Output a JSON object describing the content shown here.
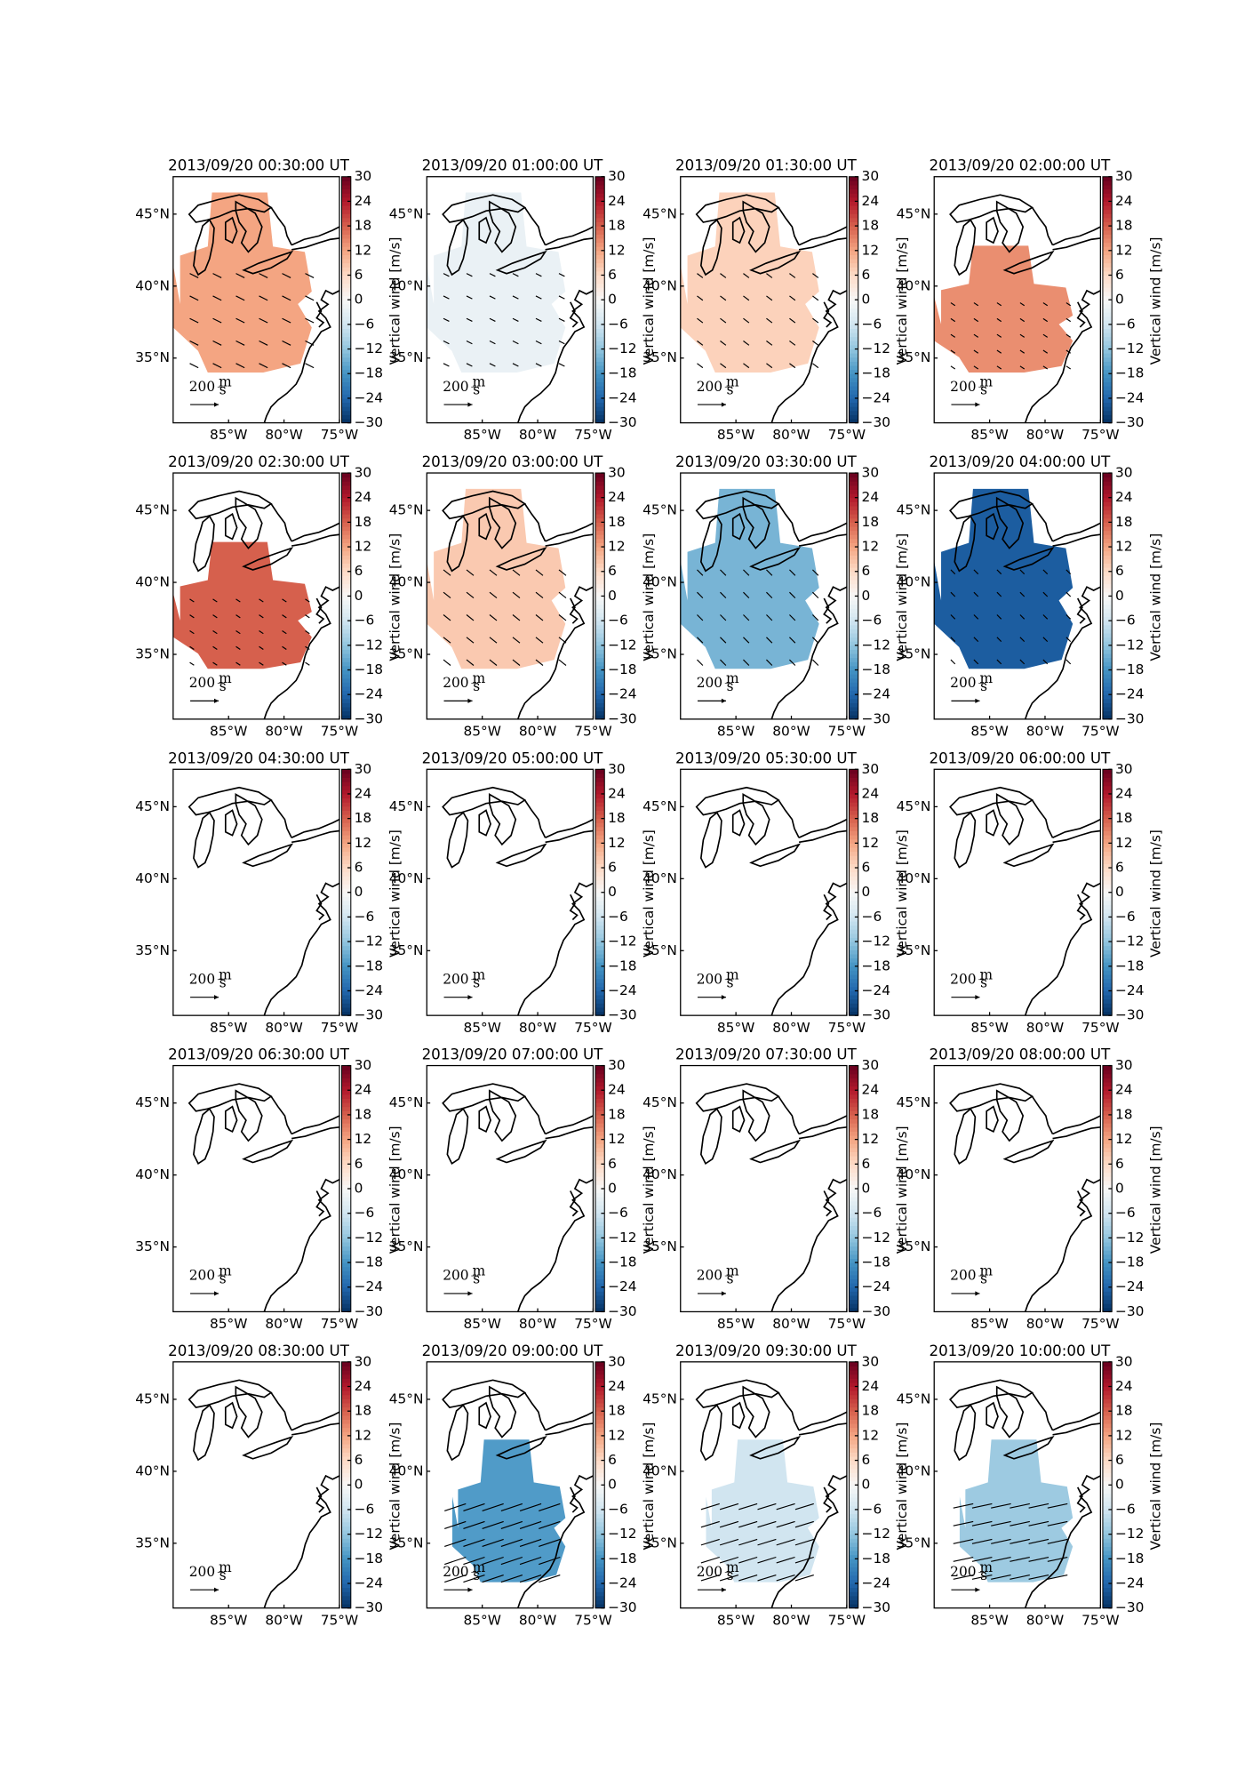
{
  "chart_data": {
    "type": "map",
    "colorbar_label": "Vertical wind [m/s]",
    "clim": [
      -30,
      30
    ],
    "cticks": [
      30,
      24,
      18,
      12,
      6,
      0,
      {
        "value": -6,
        "label": "−6"
      },
      {
        "value": -12,
        "label": "−12"
      },
      {
        "value": -18,
        "label": "−18"
      },
      {
        "value": -24,
        "label": "−24"
      },
      {
        "value": -30,
        "label": "−30"
      }
    ],
    "xlim": [
      -90,
      -75
    ],
    "xticks": [
      {
        "value": -85,
        "label": "85°W"
      },
      {
        "value": -80,
        "label": "80°W"
      },
      {
        "value": -75,
        "label": "75°W"
      }
    ],
    "ylim": [
      30.5,
      47.6
    ],
    "yticks": [
      {
        "value": 35,
        "label": "35°N"
      },
      {
        "value": 40,
        "label": "40°N"
      },
      {
        "value": 45,
        "label": "45°N"
      }
    ],
    "scale": {
      "value": 200,
      "unit": "m",
      "per": "s"
    },
    "panels": [
      {
        "title": "2013/09/20 00:30:00 UT",
        "value": 12,
        "vector": [
          60,
          -30
        ],
        "lon_range": [
          -90,
          -77.5
        ],
        "lat_range": [
          34,
          46.5
        ]
      },
      {
        "title": "2013/09/20 01:00:00 UT",
        "value": -2,
        "vector": [
          40,
          -20
        ],
        "lon_range": [
          -90,
          -77.5
        ],
        "lat_range": [
          34,
          46.5
        ]
      },
      {
        "title": "2013/09/20 01:30:00 UT",
        "value": 7,
        "vector": [
          40,
          -30
        ],
        "lon_range": [
          -90,
          -77.5
        ],
        "lat_range": [
          34,
          46.5
        ]
      },
      {
        "title": "2013/09/20 02:00:00 UT",
        "value": 14,
        "vector": [
          30,
          -20
        ],
        "lon_range": [
          -90,
          -77.5
        ],
        "lat_range": [
          34,
          42.8
        ]
      },
      {
        "title": "2013/09/20 02:30:00 UT",
        "value": 18,
        "vector": [
          30,
          -20
        ],
        "lon_range": [
          -90,
          -77.5
        ],
        "lat_range": [
          34,
          42.8
        ]
      },
      {
        "title": "2013/09/20 03:00:00 UT",
        "value": 8,
        "vector": [
          50,
          -40
        ],
        "lon_range": [
          -90,
          -77.5
        ],
        "lat_range": [
          34,
          46.5
        ]
      },
      {
        "title": "2013/09/20 03:30:00 UT",
        "value": -14,
        "vector": [
          40,
          -40
        ],
        "lon_range": [
          -90,
          -77.5
        ],
        "lat_range": [
          34,
          46.5
        ]
      },
      {
        "title": "2013/09/20 04:00:00 UT",
        "value": -25,
        "vector": [
          30,
          -30
        ],
        "lon_range": [
          -90,
          -77.5
        ],
        "lat_range": [
          34,
          46.5
        ]
      },
      {
        "title": "2013/09/20 04:30:00 UT",
        "value": null
      },
      {
        "title": "2013/09/20 05:00:00 UT",
        "value": null
      },
      {
        "title": "2013/09/20 05:30:00 UT",
        "value": null
      },
      {
        "title": "2013/09/20 06:00:00 UT",
        "value": null
      },
      {
        "title": "2013/09/20 06:30:00 UT",
        "value": null
      },
      {
        "title": "2013/09/20 07:00:00 UT",
        "value": null
      },
      {
        "title": "2013/09/20 07:30:00 UT",
        "value": null
      },
      {
        "title": "2013/09/20 08:00:00 UT",
        "value": null
      },
      {
        "title": "2013/09/20 08:30:00 UT",
        "value": null
      },
      {
        "title": "2013/09/20 09:00:00 UT",
        "value": -17,
        "vector": [
          -150,
          -50
        ],
        "lon_range": [
          -87.7,
          -77.5
        ],
        "lat_range": [
          32.3,
          42.2
        ]
      },
      {
        "title": "2013/09/20 09:30:00 UT",
        "value": -6,
        "vector": [
          -130,
          -40
        ],
        "lon_range": [
          -87.7,
          -77.5
        ],
        "lat_range": [
          32.3,
          42.2
        ]
      },
      {
        "title": "2013/09/20 10:00:00 UT",
        "value": -11,
        "vector": [
          -140,
          -30
        ],
        "lon_range": [
          -87.7,
          -77.5
        ],
        "lat_range": [
          32.3,
          42.2
        ]
      }
    ]
  }
}
